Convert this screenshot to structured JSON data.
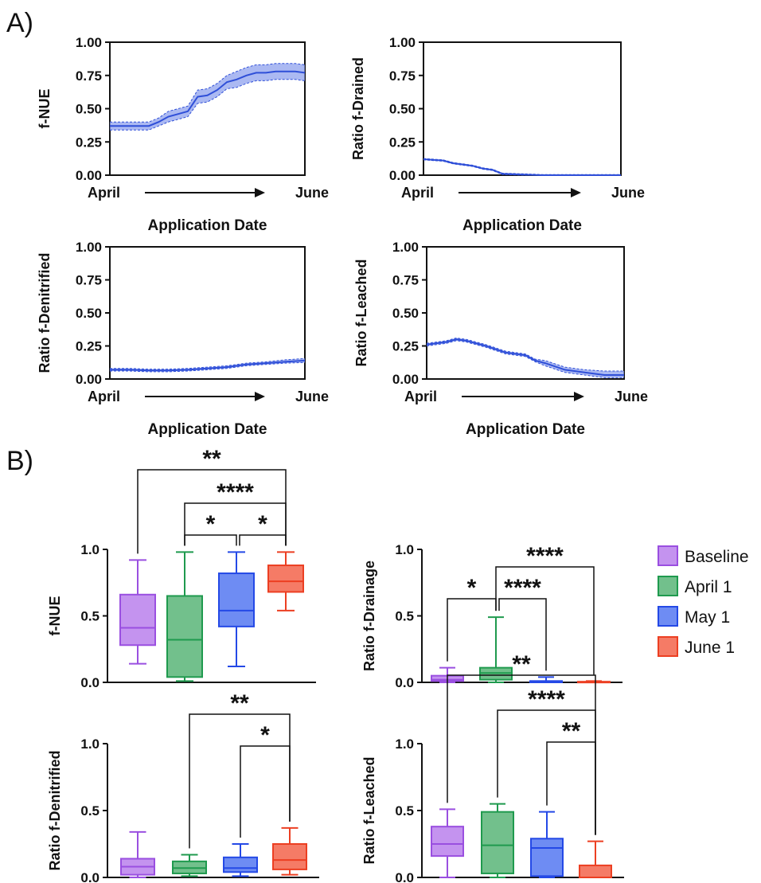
{
  "panels": {
    "A": "A)",
    "B": "B)"
  },
  "colors": {
    "line": "#2f4fd8",
    "band": "#8fa2ee",
    "axis": "#111111"
  },
  "chart_data": [
    {
      "id": "a1",
      "panel": "A",
      "type": "line",
      "ylabel": "f-NUE",
      "xlabel": "Application Date",
      "x_start_label": "April",
      "x_end_label": "June",
      "ylim": [
        0,
        1
      ],
      "yticks": [
        "0.00",
        "0.25",
        "0.50",
        "0.75",
        "1.00"
      ],
      "x": [
        0,
        0.1,
        0.2,
        0.25,
        0.3,
        0.35,
        0.4,
        0.45,
        0.5,
        0.55,
        0.6,
        0.65,
        0.7,
        0.75,
        0.8,
        0.85,
        0.9,
        0.95,
        1.0
      ],
      "mean": [
        0.37,
        0.37,
        0.37,
        0.4,
        0.44,
        0.46,
        0.48,
        0.59,
        0.6,
        0.64,
        0.7,
        0.72,
        0.75,
        0.77,
        0.77,
        0.78,
        0.78,
        0.78,
        0.77
      ],
      "lower": [
        0.34,
        0.34,
        0.34,
        0.37,
        0.4,
        0.42,
        0.44,
        0.54,
        0.55,
        0.59,
        0.65,
        0.66,
        0.69,
        0.71,
        0.71,
        0.72,
        0.72,
        0.72,
        0.71
      ],
      "upper": [
        0.4,
        0.4,
        0.4,
        0.43,
        0.48,
        0.5,
        0.52,
        0.64,
        0.65,
        0.69,
        0.75,
        0.78,
        0.81,
        0.83,
        0.83,
        0.84,
        0.84,
        0.84,
        0.83
      ]
    },
    {
      "id": "a2",
      "panel": "A",
      "type": "line",
      "ylabel": "Ratio f-Drained",
      "xlabel": "Application Date",
      "x_start_label": "April",
      "x_end_label": "June",
      "ylim": [
        0,
        1
      ],
      "yticks": [
        "0.00",
        "0.25",
        "0.50",
        "0.75",
        "1.00"
      ],
      "x": [
        0,
        0.1,
        0.15,
        0.2,
        0.25,
        0.3,
        0.35,
        0.4,
        0.5,
        0.6,
        0.8,
        1.0
      ],
      "mean": [
        0.12,
        0.11,
        0.09,
        0.08,
        0.07,
        0.05,
        0.04,
        0.01,
        0.005,
        0.0,
        0.0,
        0.0
      ],
      "lower": [
        0.115,
        0.105,
        0.085,
        0.075,
        0.065,
        0.045,
        0.035,
        0.005,
        0.0,
        0.0,
        0.0,
        0.0
      ],
      "upper": [
        0.125,
        0.115,
        0.095,
        0.085,
        0.075,
        0.055,
        0.045,
        0.015,
        0.01,
        0.005,
        0.005,
        0.005
      ]
    },
    {
      "id": "a3",
      "panel": "A",
      "type": "line",
      "ylabel": "Ratio f-Denitrified",
      "xlabel": "Application Date",
      "x_start_label": "April",
      "x_end_label": "June",
      "ylim": [
        0,
        1
      ],
      "yticks": [
        "0.00",
        "0.25",
        "0.50",
        "0.75",
        "1.00"
      ],
      "x": [
        0,
        0.1,
        0.2,
        0.3,
        0.4,
        0.5,
        0.6,
        0.7,
        0.8,
        0.9,
        1.0
      ],
      "mean": [
        0.07,
        0.07,
        0.065,
        0.065,
        0.07,
        0.08,
        0.09,
        0.11,
        0.12,
        0.13,
        0.14
      ],
      "lower": [
        0.06,
        0.06,
        0.055,
        0.055,
        0.06,
        0.07,
        0.08,
        0.1,
        0.11,
        0.12,
        0.125
      ],
      "upper": [
        0.08,
        0.08,
        0.075,
        0.075,
        0.08,
        0.09,
        0.1,
        0.12,
        0.13,
        0.145,
        0.155
      ]
    },
    {
      "id": "a4",
      "panel": "A",
      "type": "line",
      "ylabel": "Ratio f-Leached",
      "xlabel": "Application Date",
      "x_start_label": "April",
      "x_end_label": "June",
      "ylim": [
        0,
        1
      ],
      "yticks": [
        "0.00",
        "0.25",
        "0.50",
        "0.75",
        "1.00"
      ],
      "x": [
        0,
        0.1,
        0.15,
        0.2,
        0.3,
        0.4,
        0.5,
        0.55,
        0.6,
        0.7,
        0.8,
        0.9,
        1.0
      ],
      "mean": [
        0.26,
        0.28,
        0.3,
        0.29,
        0.25,
        0.2,
        0.18,
        0.14,
        0.12,
        0.07,
        0.05,
        0.03,
        0.03
      ],
      "lower": [
        0.25,
        0.27,
        0.29,
        0.28,
        0.24,
        0.19,
        0.17,
        0.13,
        0.1,
        0.05,
        0.03,
        0.01,
        0.01
      ],
      "upper": [
        0.27,
        0.29,
        0.31,
        0.3,
        0.26,
        0.21,
        0.19,
        0.15,
        0.14,
        0.09,
        0.07,
        0.06,
        0.06
      ]
    },
    {
      "id": "b1",
      "panel": "B",
      "type": "box",
      "ylabel": "f-NUE",
      "ylim": [
        0,
        1
      ],
      "yticks": [
        "0.0",
        "0.5",
        "1.0"
      ],
      "groups": [
        {
          "name": "Baseline",
          "min": 0.14,
          "q1": 0.28,
          "median": 0.41,
          "q3": 0.66,
          "max": 0.92
        },
        {
          "name": "April 1",
          "min": 0.01,
          "q1": 0.04,
          "median": 0.32,
          "q3": 0.65,
          "max": 0.98
        },
        {
          "name": "May 1",
          "min": 0.12,
          "q1": 0.42,
          "median": 0.54,
          "q3": 0.82,
          "max": 0.98
        },
        {
          "name": "June 1",
          "min": 0.54,
          "q1": 0.68,
          "median": 0.76,
          "q3": 0.88,
          "max": 0.98
        }
      ],
      "significance": [
        {
          "from": 0,
          "to": 3,
          "label": "**"
        },
        {
          "from": 1,
          "to": 3,
          "label": "****"
        },
        {
          "from": 1,
          "to": 2,
          "label": "*"
        },
        {
          "from": 2,
          "to": 3,
          "label": "*"
        }
      ]
    },
    {
      "id": "b2",
      "panel": "B",
      "type": "box",
      "ylabel": "Ratio f-Drainage",
      "ylim": [
        0,
        1
      ],
      "yticks": [
        "0.0",
        "0.5",
        "1.0"
      ],
      "groups": [
        {
          "name": "Baseline",
          "min": 0.0,
          "q1": 0.01,
          "median": 0.02,
          "q3": 0.05,
          "max": 0.11
        },
        {
          "name": "April 1",
          "min": 0.0,
          "q1": 0.02,
          "median": 0.07,
          "q3": 0.11,
          "max": 0.49
        },
        {
          "name": "May 1",
          "min": 0.0,
          "q1": 0.0,
          "median": 0.005,
          "q3": 0.01,
          "max": 0.04
        },
        {
          "name": "June 1",
          "min": 0.0,
          "q1": 0.0,
          "median": 0.002,
          "q3": 0.005,
          "max": 0.01
        }
      ],
      "significance": [
        {
          "from": 1,
          "to": 3,
          "label": "****"
        },
        {
          "from": 0,
          "to": 1,
          "label": "*"
        },
        {
          "from": 1,
          "to": 2,
          "label": "****"
        }
      ]
    },
    {
      "id": "b3",
      "panel": "B",
      "type": "box",
      "ylabel": "Ratio f-Denitrified",
      "ylim": [
        0,
        1
      ],
      "yticks": [
        "0.0",
        "0.5",
        "1.0"
      ],
      "groups": [
        {
          "name": "Baseline",
          "min": 0.0,
          "q1": 0.02,
          "median": 0.08,
          "q3": 0.14,
          "max": 0.34
        },
        {
          "name": "April 1",
          "min": 0.01,
          "q1": 0.03,
          "median": 0.07,
          "q3": 0.12,
          "max": 0.17
        },
        {
          "name": "May 1",
          "min": 0.01,
          "q1": 0.04,
          "median": 0.07,
          "q3": 0.15,
          "max": 0.25
        },
        {
          "name": "June 1",
          "min": 0.02,
          "q1": 0.06,
          "median": 0.13,
          "q3": 0.25,
          "max": 0.37
        }
      ],
      "significance": [
        {
          "from": 1,
          "to": 3,
          "label": "**"
        },
        {
          "from": 2,
          "to": 3,
          "label": "*"
        }
      ]
    },
    {
      "id": "b4",
      "panel": "B",
      "type": "box",
      "ylabel": "Ratio f-Leached",
      "ylim": [
        0,
        1
      ],
      "yticks": [
        "0.0",
        "0.5",
        "1.0"
      ],
      "groups": [
        {
          "name": "Baseline",
          "min": 0.0,
          "q1": 0.16,
          "median": 0.25,
          "q3": 0.38,
          "max": 0.51
        },
        {
          "name": "April 1",
          "min": 0.0,
          "q1": 0.03,
          "median": 0.24,
          "q3": 0.49,
          "max": 0.55
        },
        {
          "name": "May 1",
          "min": 0.0,
          "q1": 0.01,
          "median": 0.22,
          "q3": 0.29,
          "max": 0.49
        },
        {
          "name": "June 1",
          "min": 0.0,
          "q1": 0.0,
          "median": 0.0,
          "q3": 0.09,
          "max": 0.27
        }
      ],
      "significance": [
        {
          "from": 0,
          "to": 3,
          "label": "**"
        },
        {
          "from": 1,
          "to": 3,
          "label": "****"
        },
        {
          "from": 2,
          "to": 3,
          "label": "**"
        }
      ]
    }
  ],
  "legend": {
    "placement": "right",
    "items": [
      {
        "label": "Baseline",
        "fill": "#c493ef",
        "stroke": "#9a4fe0"
      },
      {
        "label": "April 1",
        "fill": "#72c08c",
        "stroke": "#1f9a4e"
      },
      {
        "label": "May 1",
        "fill": "#6e8cf3",
        "stroke": "#2449e6"
      },
      {
        "label": "June 1",
        "fill": "#f57b66",
        "stroke": "#ec3f22"
      }
    ]
  }
}
